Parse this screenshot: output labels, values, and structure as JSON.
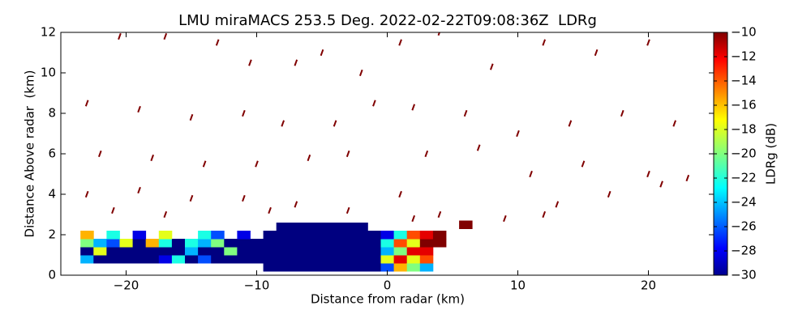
{
  "chart_data": {
    "type": "scatter",
    "title": "LMU miraMACS 253.5 Deg. 2022-02-22T09:08:36Z  LDRg",
    "x_label": "Distance from radar (km)",
    "y_label": "Distance Above radar  (km)",
    "colorbar_label": "LDRg (dB)",
    "xlim": [
      -25,
      25
    ],
    "ylim": [
      0,
      12
    ],
    "xticks": [
      {
        "value": -20,
        "label": "−20"
      },
      {
        "value": -10,
        "label": "−10"
      },
      0,
      10,
      20
    ],
    "yticks": [
      0,
      2,
      4,
      6,
      8,
      10,
      12
    ],
    "clim": [
      -30,
      -10
    ],
    "cticks": [
      {
        "value": -10,
        "label": "−10"
      },
      {
        "value": -12,
        "label": "−12"
      },
      {
        "value": -14,
        "label": "−14"
      },
      {
        "value": -16,
        "label": "−16"
      },
      {
        "value": -18,
        "label": "−18"
      },
      {
        "value": -20,
        "label": "−20"
      },
      {
        "value": -22,
        "label": "−22"
      },
      {
        "value": -24,
        "label": "−24"
      },
      {
        "value": -26,
        "label": "−26"
      },
      {
        "value": -28,
        "label": "−28"
      },
      {
        "value": -30,
        "label": "−30"
      }
    ],
    "colormap": "jet",
    "x": [
      -9,
      -8,
      -7,
      -6,
      -5,
      -4,
      -3,
      -2,
      -1,
      -9,
      -8,
      -7,
      -6,
      -5,
      -4,
      -3,
      -2,
      -1,
      -9,
      -8,
      -7,
      -6,
      -5,
      -4,
      -3,
      -2,
      -1,
      -9,
      -8,
      -7,
      -6,
      -5,
      -4,
      -3,
      -2,
      -1,
      -9,
      -8,
      -7,
      -6,
      -5,
      -4,
      -3,
      -2,
      -1,
      -8,
      -7,
      -6,
      -5,
      -4,
      -3,
      -2,
      -23,
      -22,
      -21,
      -20,
      -19,
      -18,
      -17,
      -16,
      -15,
      -14,
      -13,
      -12,
      -11,
      -10,
      -23,
      -22,
      -21,
      -20,
      -19,
      -18,
      -17,
      -16,
      -15,
      -14,
      -13,
      -12,
      -11,
      -10,
      -23,
      -22,
      -21,
      -20,
      -19,
      -18,
      -17,
      -16,
      -15,
      -14,
      -13,
      -12,
      -11,
      -10,
      -23,
      -21,
      -19,
      -17,
      -14,
      -13,
      -11,
      0,
      0,
      0,
      0,
      0,
      1,
      1,
      1,
      1,
      1,
      2,
      2,
      2,
      2,
      2,
      3,
      3,
      3,
      3,
      3,
      4,
      4,
      -20.5,
      -17,
      -13,
      -10.5,
      -7,
      -5,
      -2,
      1,
      4,
      8,
      12,
      16,
      20,
      -23,
      -19,
      -15,
      -11,
      -8,
      -4,
      -1,
      2,
      6,
      10,
      14,
      18,
      22,
      -22,
      -18,
      -14,
      -10,
      -6,
      -3,
      3,
      7,
      11,
      15,
      20,
      23,
      -23,
      -19,
      -15,
      -11,
      -7,
      -3,
      1,
      4,
      9,
      13,
      17,
      21,
      -21,
      -17,
      6,
      12,
      2,
      -9
    ],
    "y": [
      0.4,
      0.4,
      0.4,
      0.4,
      0.4,
      0.4,
      0.4,
      0.4,
      0.4,
      0.8,
      0.8,
      0.8,
      0.8,
      0.8,
      0.8,
      0.8,
      0.8,
      0.8,
      1.2,
      1.2,
      1.2,
      1.2,
      1.2,
      1.2,
      1.2,
      1.2,
      1.2,
      1.6,
      1.6,
      1.6,
      1.6,
      1.6,
      1.6,
      1.6,
      1.6,
      1.6,
      2.0,
      2.0,
      2.0,
      2.0,
      2.0,
      2.0,
      2.0,
      2.0,
      2.0,
      2.4,
      2.4,
      2.4,
      2.4,
      2.4,
      2.4,
      2.4,
      0.8,
      0.8,
      0.8,
      0.8,
      0.8,
      0.8,
      0.8,
      0.8,
      0.8,
      0.8,
      0.8,
      0.8,
      0.8,
      0.8,
      1.2,
      1.2,
      1.2,
      1.2,
      1.2,
      1.2,
      1.2,
      1.2,
      1.2,
      1.2,
      1.2,
      1.2,
      1.2,
      1.2,
      1.6,
      1.6,
      1.6,
      1.6,
      1.6,
      1.6,
      1.6,
      1.6,
      1.6,
      1.6,
      1.6,
      1.6,
      1.6,
      1.6,
      2.0,
      2.0,
      2.0,
      2.0,
      2.0,
      2.0,
      2.0,
      0.4,
      0.8,
      1.2,
      1.6,
      2.0,
      0.4,
      0.8,
      1.2,
      1.6,
      2.0,
      0.4,
      0.8,
      1.2,
      1.6,
      2.0,
      0.4,
      0.8,
      1.2,
      1.6,
      2.0,
      1.6,
      2.0,
      11.8,
      11.8,
      11.5,
      10.5,
      10.5,
      11,
      10,
      11.5,
      12,
      10.3,
      11.5,
      11,
      11.5,
      8.5,
      8.2,
      7.8,
      8,
      7.5,
      7.5,
      8.5,
      8.3,
      8,
      7,
      7.5,
      8,
      7.5,
      6,
      5.8,
      5.5,
      5.5,
      5.8,
      6,
      6,
      6.3,
      5,
      5.5,
      5,
      4.8,
      4,
      4.2,
      3.8,
      3.8,
      3.5,
      3.2,
      4,
      3,
      2.8,
      3.5,
      4,
      4.5,
      3.2,
      3,
      2.5,
      3,
      2.8,
      3.2
    ],
    "values": [
      -30,
      -30,
      -30,
      -30,
      -30,
      -30,
      -30,
      -30,
      -30,
      -30,
      -30,
      -30,
      -30,
      -30,
      -30,
      -30,
      -30,
      -30,
      -30,
      -30,
      -30,
      -30,
      -30,
      -30,
      -30,
      -30,
      -30,
      -30,
      -30,
      -30,
      -30,
      -30,
      -30,
      -30,
      -30,
      -30,
      -30,
      -30,
      -30,
      -30,
      -30,
      -30,
      -30,
      -30,
      -30,
      -30,
      -30,
      -30,
      -30,
      -30,
      -30,
      -30,
      -24,
      -30,
      -30,
      -30,
      -30,
      -30,
      -28,
      -22,
      -30,
      -26,
      -30,
      -30,
      -30,
      -30,
      -30,
      -18,
      -30,
      -30,
      -30,
      -30,
      -30,
      -30,
      -24,
      -30,
      -30,
      -20,
      -30,
      -30,
      -20,
      -24,
      -26,
      -18,
      -30,
      -16,
      -22,
      -30,
      -22,
      -24,
      -20,
      -30,
      -30,
      -30,
      -16,
      -22,
      -28,
      -18,
      -22,
      -26,
      -28,
      -26,
      -18,
      -24,
      -22,
      -28,
      -16,
      -12,
      -20,
      -14,
      -22,
      -20,
      -18,
      -12,
      -18,
      -14,
      -24,
      -14,
      -12,
      -10,
      -12,
      -10,
      -10,
      -10,
      -10,
      -10,
      -10,
      -10,
      -10,
      -10,
      -10,
      -10,
      -10,
      -10,
      -10,
      -10,
      -10,
      -10,
      -10,
      -10,
      -10,
      -10,
      -10,
      -10,
      -10,
      -10,
      -10,
      -10,
      -10,
      -10,
      -10,
      -10,
      -10,
      -10,
      -10,
      -10,
      -10,
      -10,
      -10,
      -10,
      -10,
      -10,
      -10,
      -10,
      -10,
      -10,
      -10,
      -10,
      -10,
      -10,
      -10,
      -10,
      -10,
      -10,
      -10,
      -10,
      -10,
      -10,
      -10
    ]
  }
}
